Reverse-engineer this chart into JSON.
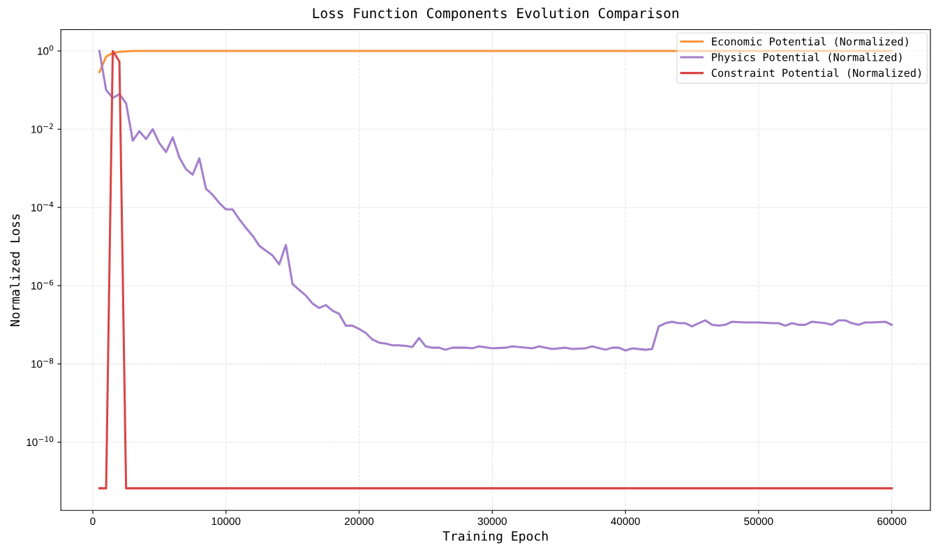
{
  "chart_data": {
    "type": "line",
    "title": "Loss Function Components Evolution Comparison",
    "xlabel": "Training Epoch",
    "ylabel": "Normalized Loss",
    "log": "y",
    "grid": true,
    "legend": "top right",
    "xlim": [
      -2400,
      62900
    ],
    "xticks": [
      0,
      10000,
      20000,
      30000,
      40000,
      50000,
      60000
    ],
    "ylim": [
      1.8e-12,
      3.5
    ],
    "yticks": [
      {
        "value": 1e-10,
        "label": "10$^{−10}$"
      },
      {
        "value": 1e-08,
        "label": "10$^{−8}$"
      },
      {
        "value": 1e-06,
        "label": "10$^{−6}$"
      },
      {
        "value": 0.0001,
        "label": "10$^{−4}$"
      },
      {
        "value": 0.01,
        "label": "10$^{−2}$"
      },
      {
        "value": 1,
        "label": "10$^{0}$"
      }
    ],
    "series": [
      {
        "name": "Economic Potential (Normalized)",
        "color": "#f9953b",
        "x": [
          500,
          1000,
          1500,
          2000,
          3000,
          60000
        ],
        "values": [
          0.29,
          0.72,
          0.89,
          0.95,
          1,
          1
        ]
      },
      {
        "name": "Physics Potential (Normalized)",
        "color": "#a57fcc",
        "x": [
          500,
          1000,
          1500,
          2000,
          2500,
          3000,
          3500,
          4000,
          4500,
          5000,
          5500,
          6000,
          6500,
          7000,
          7500,
          8000,
          8500,
          9000,
          9500,
          10000,
          10500,
          11000,
          11500,
          12000,
          12500,
          13000,
          13500,
          14000,
          14500,
          15000,
          15500,
          16000,
          16500,
          17000,
          17500,
          18000,
          18500,
          19000,
          19500,
          20000,
          20500,
          21000,
          21500,
          22000,
          22500,
          23000,
          23500,
          24000,
          24500,
          25000,
          25500,
          26000,
          26500,
          27000,
          28000,
          28500,
          29000,
          30000,
          31000,
          31500,
          33000,
          33500,
          34500,
          35500,
          36000,
          37000,
          37500,
          38500,
          39000,
          39500,
          40000,
          40500,
          41500,
          42000,
          42500,
          43000,
          43500,
          44000,
          44500,
          45000,
          45500,
          46000,
          46500,
          47000,
          47500,
          48000,
          49000,
          50000,
          51000,
          51500,
          52000,
          52500,
          53000,
          53500,
          54000,
          55000,
          55500,
          56000,
          56500,
          57000,
          57500,
          58000,
          58500,
          59500,
          60000
        ],
        "values": [
          1,
          0.1,
          0.063,
          0.079,
          0.046,
          0.0051,
          0.0089,
          0.0056,
          0.01,
          0.0044,
          0.0026,
          0.0062,
          0.0019,
          0.00095,
          0.00069,
          0.0018,
          0.0003,
          0.00021,
          0.00013,
          8.9e-05,
          8.9e-05,
          5e-05,
          3e-05,
          1.9e-05,
          1.05e-05,
          7.8e-06,
          5.9e-06,
          3.5e-06,
          1.1e-05,
          1.1e-06,
          7.8e-07,
          5.6e-07,
          3.5e-07,
          2.7e-07,
          3.2e-07,
          2.3e-07,
          1.9e-07,
          9.5e-08,
          9.5e-08,
          7.8e-08,
          6.2e-08,
          4.2e-08,
          3.5e-08,
          3.3e-08,
          3e-08,
          3e-08,
          2.9e-08,
          2.7e-08,
          4.6e-08,
          2.8e-08,
          2.6e-08,
          2.6e-08,
          2.3e-08,
          2.6e-08,
          2.6e-08,
          2.5e-08,
          2.8e-08,
          2.5e-08,
          2.6e-08,
          2.8e-08,
          2.5e-08,
          2.8e-08,
          2.4e-08,
          2.6e-08,
          2.4e-08,
          2.5e-08,
          2.8e-08,
          2.3e-08,
          2.6e-08,
          2.6e-08,
          2.2e-08,
          2.5e-08,
          2.3e-08,
          2.4e-08,
          9.1e-08,
          1.1e-07,
          1.2e-07,
          1.1e-07,
          1.1e-07,
          9.1e-08,
          1.1e-07,
          1.3e-07,
          1e-07,
          9.5e-08,
          1e-07,
          1.2e-07,
          1.15e-07,
          1.15e-07,
          1.1e-07,
          1.1e-07,
          9.5e-08,
          1.1e-07,
          1e-07,
          1e-07,
          1.2e-07,
          1.1e-07,
          1e-07,
          1.3e-07,
          1.3e-07,
          1.1e-07,
          1e-07,
          1.15e-07,
          1.15e-07,
          1.2e-07,
          1e-07
        ]
      },
      {
        "name": "Constraint Potential (Normalized)",
        "color": "#d94545",
        "x": [
          500,
          1000,
          1500,
          2000,
          2500,
          60000
        ],
        "values": [
          6.6e-12,
          6.6e-12,
          1,
          0.54,
          6.6e-12,
          6.6e-12
        ]
      }
    ]
  }
}
